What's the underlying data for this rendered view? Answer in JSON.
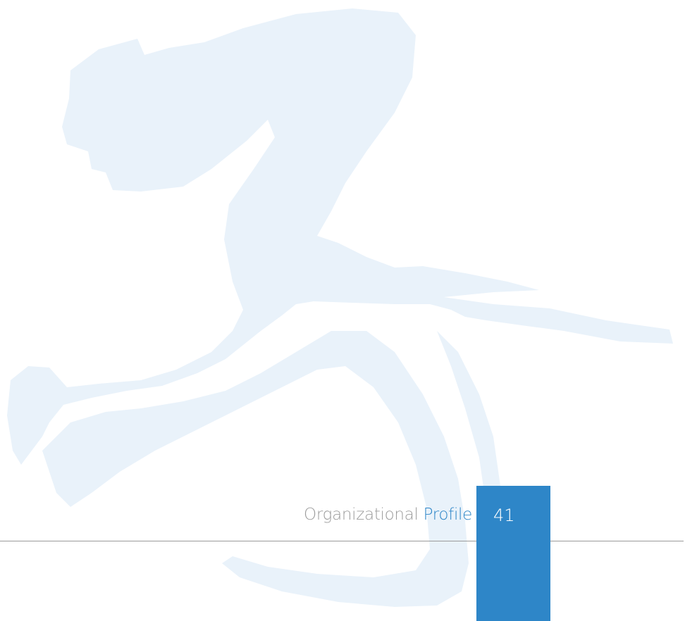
{
  "footer": {
    "section": "Organizational",
    "section_highlight": "Profile",
    "page_number": 41
  }
}
